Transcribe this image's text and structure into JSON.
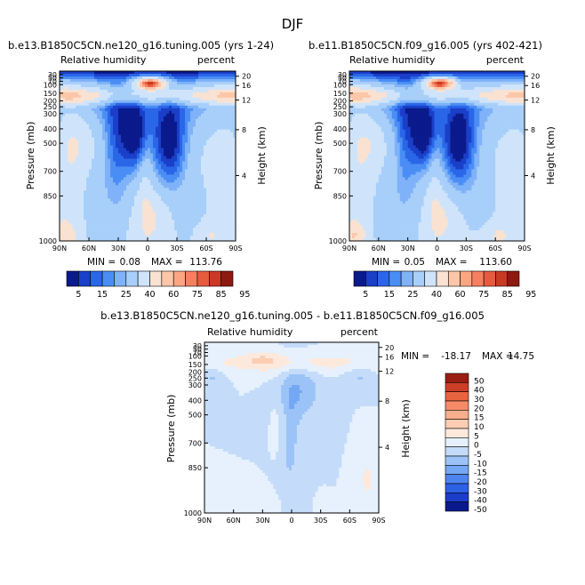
{
  "page_title": "DJF",
  "colors": {
    "filled": [
      "#0a1a8c",
      "#1a3fc8",
      "#2a66e8",
      "#4a8ef5",
      "#7fb2f8",
      "#a8cff9",
      "#cfe4fb",
      "#f9e2d2",
      "#fcc6a8",
      "#fba583",
      "#f67f5f",
      "#e65a3d",
      "#c83a24",
      "#8c1a10"
    ],
    "diff": [
      "#0a1a8c",
      "#1c3dc9",
      "#2d61e6",
      "#4d85f0",
      "#74a7f4",
      "#9cc3f7",
      "#c4dcfa",
      "#e6f1fd",
      "#fde9dc",
      "#fccdb2",
      "#fbae8d",
      "#f68a67",
      "#e8643f",
      "#cc3f26",
      "#9a1d12"
    ]
  },
  "chart_data": [
    {
      "type": "heatmap",
      "title": "b.e13.B1850C5CN.ne120_g16.tuning.005 (yrs 1-24)",
      "left_label": "Relative humidity",
      "right_label": "percent",
      "ylabel": "Pressure (mb)",
      "y2label": "Height (km)",
      "x_ticks": [
        "90N",
        "60N",
        "30N",
        "0",
        "30S",
        "60S",
        "90S"
      ],
      "y_ticks": [
        "30",
        "50",
        "70",
        "100",
        "150",
        "200",
        "250",
        "300",
        "400",
        "500",
        "700",
        "850",
        "1000"
      ],
      "y2_ticks": [
        "20",
        "16",
        "12",
        "8",
        "4"
      ],
      "min_label": "MIN =",
      "min_value": "0.08",
      "max_label": "MAX =",
      "max_value": "113.76",
      "colorbar_labels": [
        "5",
        "15",
        "25",
        "40",
        "60",
        "75",
        "85",
        "95"
      ],
      "levels": [
        5,
        10,
        15,
        20,
        25,
        30,
        40,
        50,
        60,
        70,
        75,
        80,
        85,
        90,
        95
      ]
    },
    {
      "type": "heatmap",
      "title": "b.e11.B1850C5CN.f09_g16.005 (yrs 402-421)",
      "left_label": "Relative humidity",
      "right_label": "percent",
      "ylabel": "Pressure (mb)",
      "y2label": "Height (km)",
      "x_ticks": [
        "90N",
        "60N",
        "30N",
        "0",
        "30S",
        "60S",
        "90S"
      ],
      "y_ticks": [
        "30",
        "50",
        "70",
        "100",
        "150",
        "200",
        "250",
        "300",
        "400",
        "500",
        "700",
        "850",
        "1000"
      ],
      "y2_ticks": [
        "20",
        "16",
        "12",
        "8",
        "4"
      ],
      "min_label": "MIN =",
      "min_value": "0.05",
      "max_label": "MAX =",
      "max_value": "113.60",
      "colorbar_labels": [
        "5",
        "15",
        "25",
        "40",
        "60",
        "75",
        "85",
        "95"
      ],
      "levels": [
        5,
        10,
        15,
        20,
        25,
        30,
        40,
        50,
        60,
        70,
        75,
        80,
        85,
        90,
        95
      ]
    },
    {
      "type": "heatmap",
      "title": "b.e13.B1850C5CN.ne120_g16.tuning.005 - b.e11.B1850C5CN.f09_g16.005",
      "left_label": "Relative humidity",
      "right_label": "percent",
      "ylabel": "Pressure (mb)",
      "y2label": "Height (km)",
      "x_ticks": [
        "90N",
        "60N",
        "30N",
        "0",
        "30S",
        "60S",
        "90S"
      ],
      "y_ticks": [
        "30",
        "50",
        "70",
        "100",
        "150",
        "200",
        "250",
        "300",
        "400",
        "500",
        "700",
        "850",
        "1000"
      ],
      "y2_ticks": [
        "20",
        "16",
        "12",
        "8",
        "4"
      ],
      "min_label": "MIN =",
      "min_value": "-18.17",
      "max_label": "MAX =",
      "max_value": "14.75",
      "colorbar_labels": [
        "50",
        "40",
        "30",
        "20",
        "15",
        "10",
        "5",
        "0",
        "-5",
        "-10",
        "-15",
        "-20",
        "-30",
        "-40",
        "-50"
      ]
    }
  ]
}
